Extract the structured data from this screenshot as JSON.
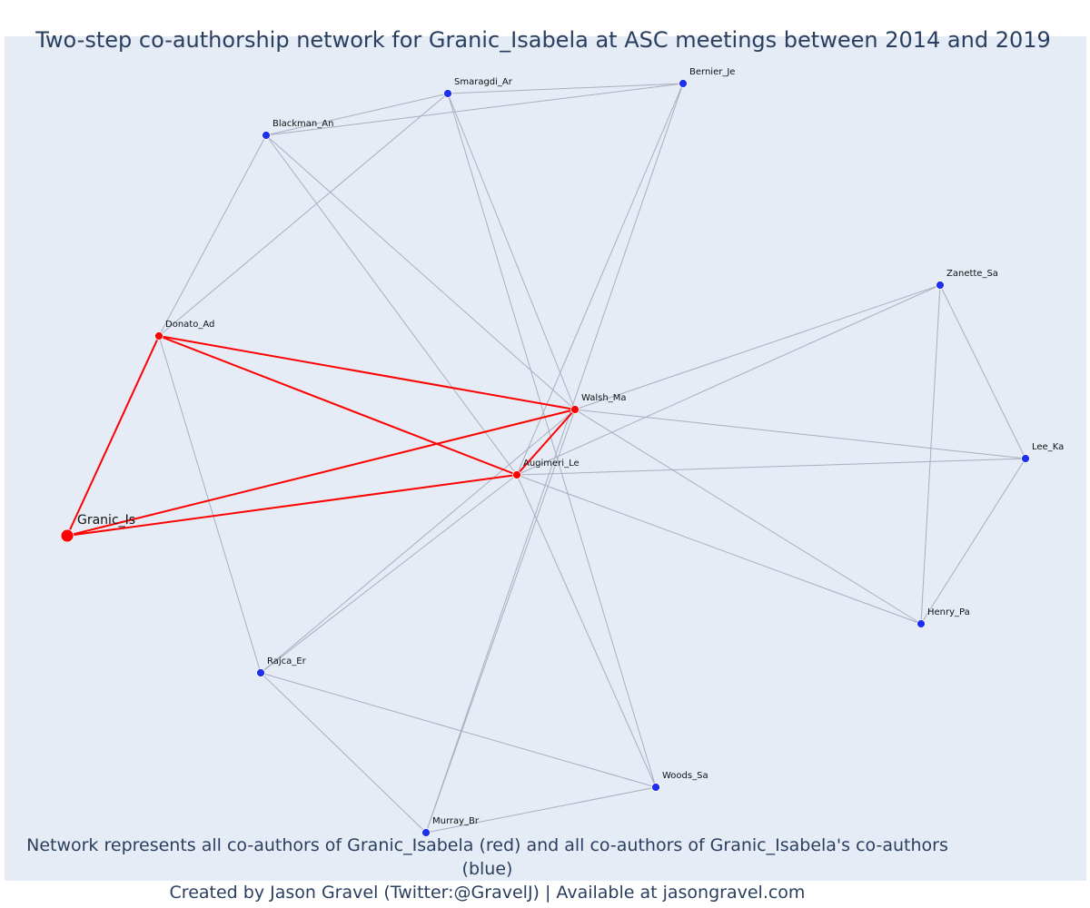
{
  "title": "Two-step co-authorship network for Granic_Isabela at ASC meetings between 2014 and 2019",
  "caption": {
    "line1": "Network represents all co-authors of Granic_Isabela (red) and all co-authors of Granic_Isabela's co-authors (blue)",
    "line2": "Created by Jason Gravel (Twitter:@GravelJ) | Available at jasongravel.com"
  },
  "colors": {
    "background": "#e5ecf6",
    "focal": "#ff0000",
    "coauthor": "#ff0000",
    "second_step": "#1f2ff0",
    "edge_second_step": "#a9aec0",
    "text": "#2a3f5f"
  },
  "nodes": [
    {
      "id": "Granic_Is",
      "label": "Granic_Is",
      "group": "focal"
    },
    {
      "id": "Donato_Ad",
      "label": "Donato_Ad",
      "group": "coauthor"
    },
    {
      "id": "Walsh_Ma",
      "label": "Walsh_Ma",
      "group": "coauthor"
    },
    {
      "id": "Augimeri_Le",
      "label": "Augimeri_Le",
      "group": "coauthor"
    },
    {
      "id": "Smaragdi_Ar",
      "label": "Smaragdi_Ar",
      "group": "second_step"
    },
    {
      "id": "Bernier_Je",
      "label": "Bernier_Je",
      "group": "second_step"
    },
    {
      "id": "Blackman_An",
      "label": "Blackman_An",
      "group": "second_step"
    },
    {
      "id": "Zanette_Sa",
      "label": "Zanette_Sa",
      "group": "second_step"
    },
    {
      "id": "Lee_Ka",
      "label": "Lee_Ka",
      "group": "second_step"
    },
    {
      "id": "Henry_Pa",
      "label": "Henry_Pa",
      "group": "second_step"
    },
    {
      "id": "Rajca_Er",
      "label": "Rajca_Er",
      "group": "second_step"
    },
    {
      "id": "Woods_Sa",
      "label": "Woods_Sa",
      "group": "second_step"
    },
    {
      "id": "Murray_Br",
      "label": "Murray_Br",
      "group": "second_step"
    }
  ],
  "edges": [
    [
      "Granic_Is",
      "Donato_Ad",
      "red"
    ],
    [
      "Granic_Is",
      "Walsh_Ma",
      "red"
    ],
    [
      "Granic_Is",
      "Augimeri_Le",
      "red"
    ],
    [
      "Donato_Ad",
      "Walsh_Ma",
      "red"
    ],
    [
      "Donato_Ad",
      "Augimeri_Le",
      "red"
    ],
    [
      "Walsh_Ma",
      "Augimeri_Le",
      "red"
    ],
    [
      "Smaragdi_Ar",
      "Bernier_Je",
      "gray"
    ],
    [
      "Smaragdi_Ar",
      "Blackman_An",
      "gray"
    ],
    [
      "Smaragdi_Ar",
      "Donato_Ad",
      "gray"
    ],
    [
      "Smaragdi_Ar",
      "Walsh_Ma",
      "gray"
    ],
    [
      "Smaragdi_Ar",
      "Woods_Sa",
      "gray"
    ],
    [
      "Bernier_Je",
      "Blackman_An",
      "gray"
    ],
    [
      "Bernier_Je",
      "Augimeri_Le",
      "gray"
    ],
    [
      "Bernier_Je",
      "Murray_Br",
      "gray"
    ],
    [
      "Blackman_An",
      "Donato_Ad",
      "gray"
    ],
    [
      "Blackman_An",
      "Walsh_Ma",
      "gray"
    ],
    [
      "Blackman_An",
      "Augimeri_Le",
      "gray"
    ],
    [
      "Donato_Ad",
      "Rajca_Er",
      "gray"
    ],
    [
      "Zanette_Sa",
      "Walsh_Ma",
      "gray"
    ],
    [
      "Zanette_Sa",
      "Augimeri_Le",
      "gray"
    ],
    [
      "Zanette_Sa",
      "Lee_Ka",
      "gray"
    ],
    [
      "Zanette_Sa",
      "Henry_Pa",
      "gray"
    ],
    [
      "Walsh_Ma",
      "Lee_Ka",
      "gray"
    ],
    [
      "Walsh_Ma",
      "Henry_Pa",
      "gray"
    ],
    [
      "Walsh_Ma",
      "Rajca_Er",
      "gray"
    ],
    [
      "Walsh_Ma",
      "Murray_Br",
      "gray"
    ],
    [
      "Augimeri_Le",
      "Lee_Ka",
      "gray"
    ],
    [
      "Augimeri_Le",
      "Henry_Pa",
      "gray"
    ],
    [
      "Augimeri_Le",
      "Rajca_Er",
      "gray"
    ],
    [
      "Augimeri_Le",
      "Woods_Sa",
      "gray"
    ],
    [
      "Lee_Ka",
      "Henry_Pa",
      "gray"
    ],
    [
      "Rajca_Er",
      "Woods_Sa",
      "gray"
    ],
    [
      "Rajca_Er",
      "Murray_Br",
      "gray"
    ],
    [
      "Murray_Br",
      "Woods_Sa",
      "gray"
    ]
  ]
}
